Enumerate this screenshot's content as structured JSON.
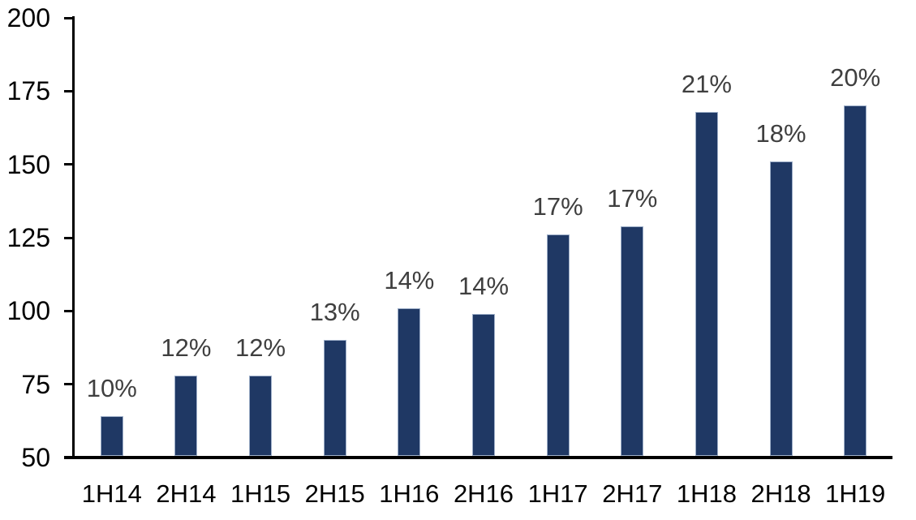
{
  "page": {
    "background": "#FFFFFF"
  },
  "chart_data": {
    "type": "bar",
    "title": "",
    "xlabel": "",
    "ylabel": "",
    "categories": [
      "1H14",
      "2H14",
      "1H15",
      "2H15",
      "1H16",
      "2H16",
      "1H17",
      "2H17",
      "1H18",
      "2H18",
      "1H19"
    ],
    "values": [
      64,
      78,
      78,
      90,
      101,
      99,
      126,
      129,
      168,
      151,
      170
    ],
    "data_labels": [
      "10%",
      "12%",
      "12%",
      "13%",
      "14%",
      "14%",
      "17%",
      "17%",
      "21%",
      "18%",
      "20%"
    ],
    "ylim": [
      50,
      200
    ],
    "yticks": [
      200,
      175,
      150,
      125,
      100,
      75,
      50
    ],
    "ytick_interval": 25,
    "grid": false,
    "legend": false,
    "bar_color": "#1F3864",
    "bar_border_color": "#9DAEC8",
    "data_label_color": "#3F3F3F",
    "axis_label_color": "#000000",
    "axis_line_color": "#000000"
  }
}
